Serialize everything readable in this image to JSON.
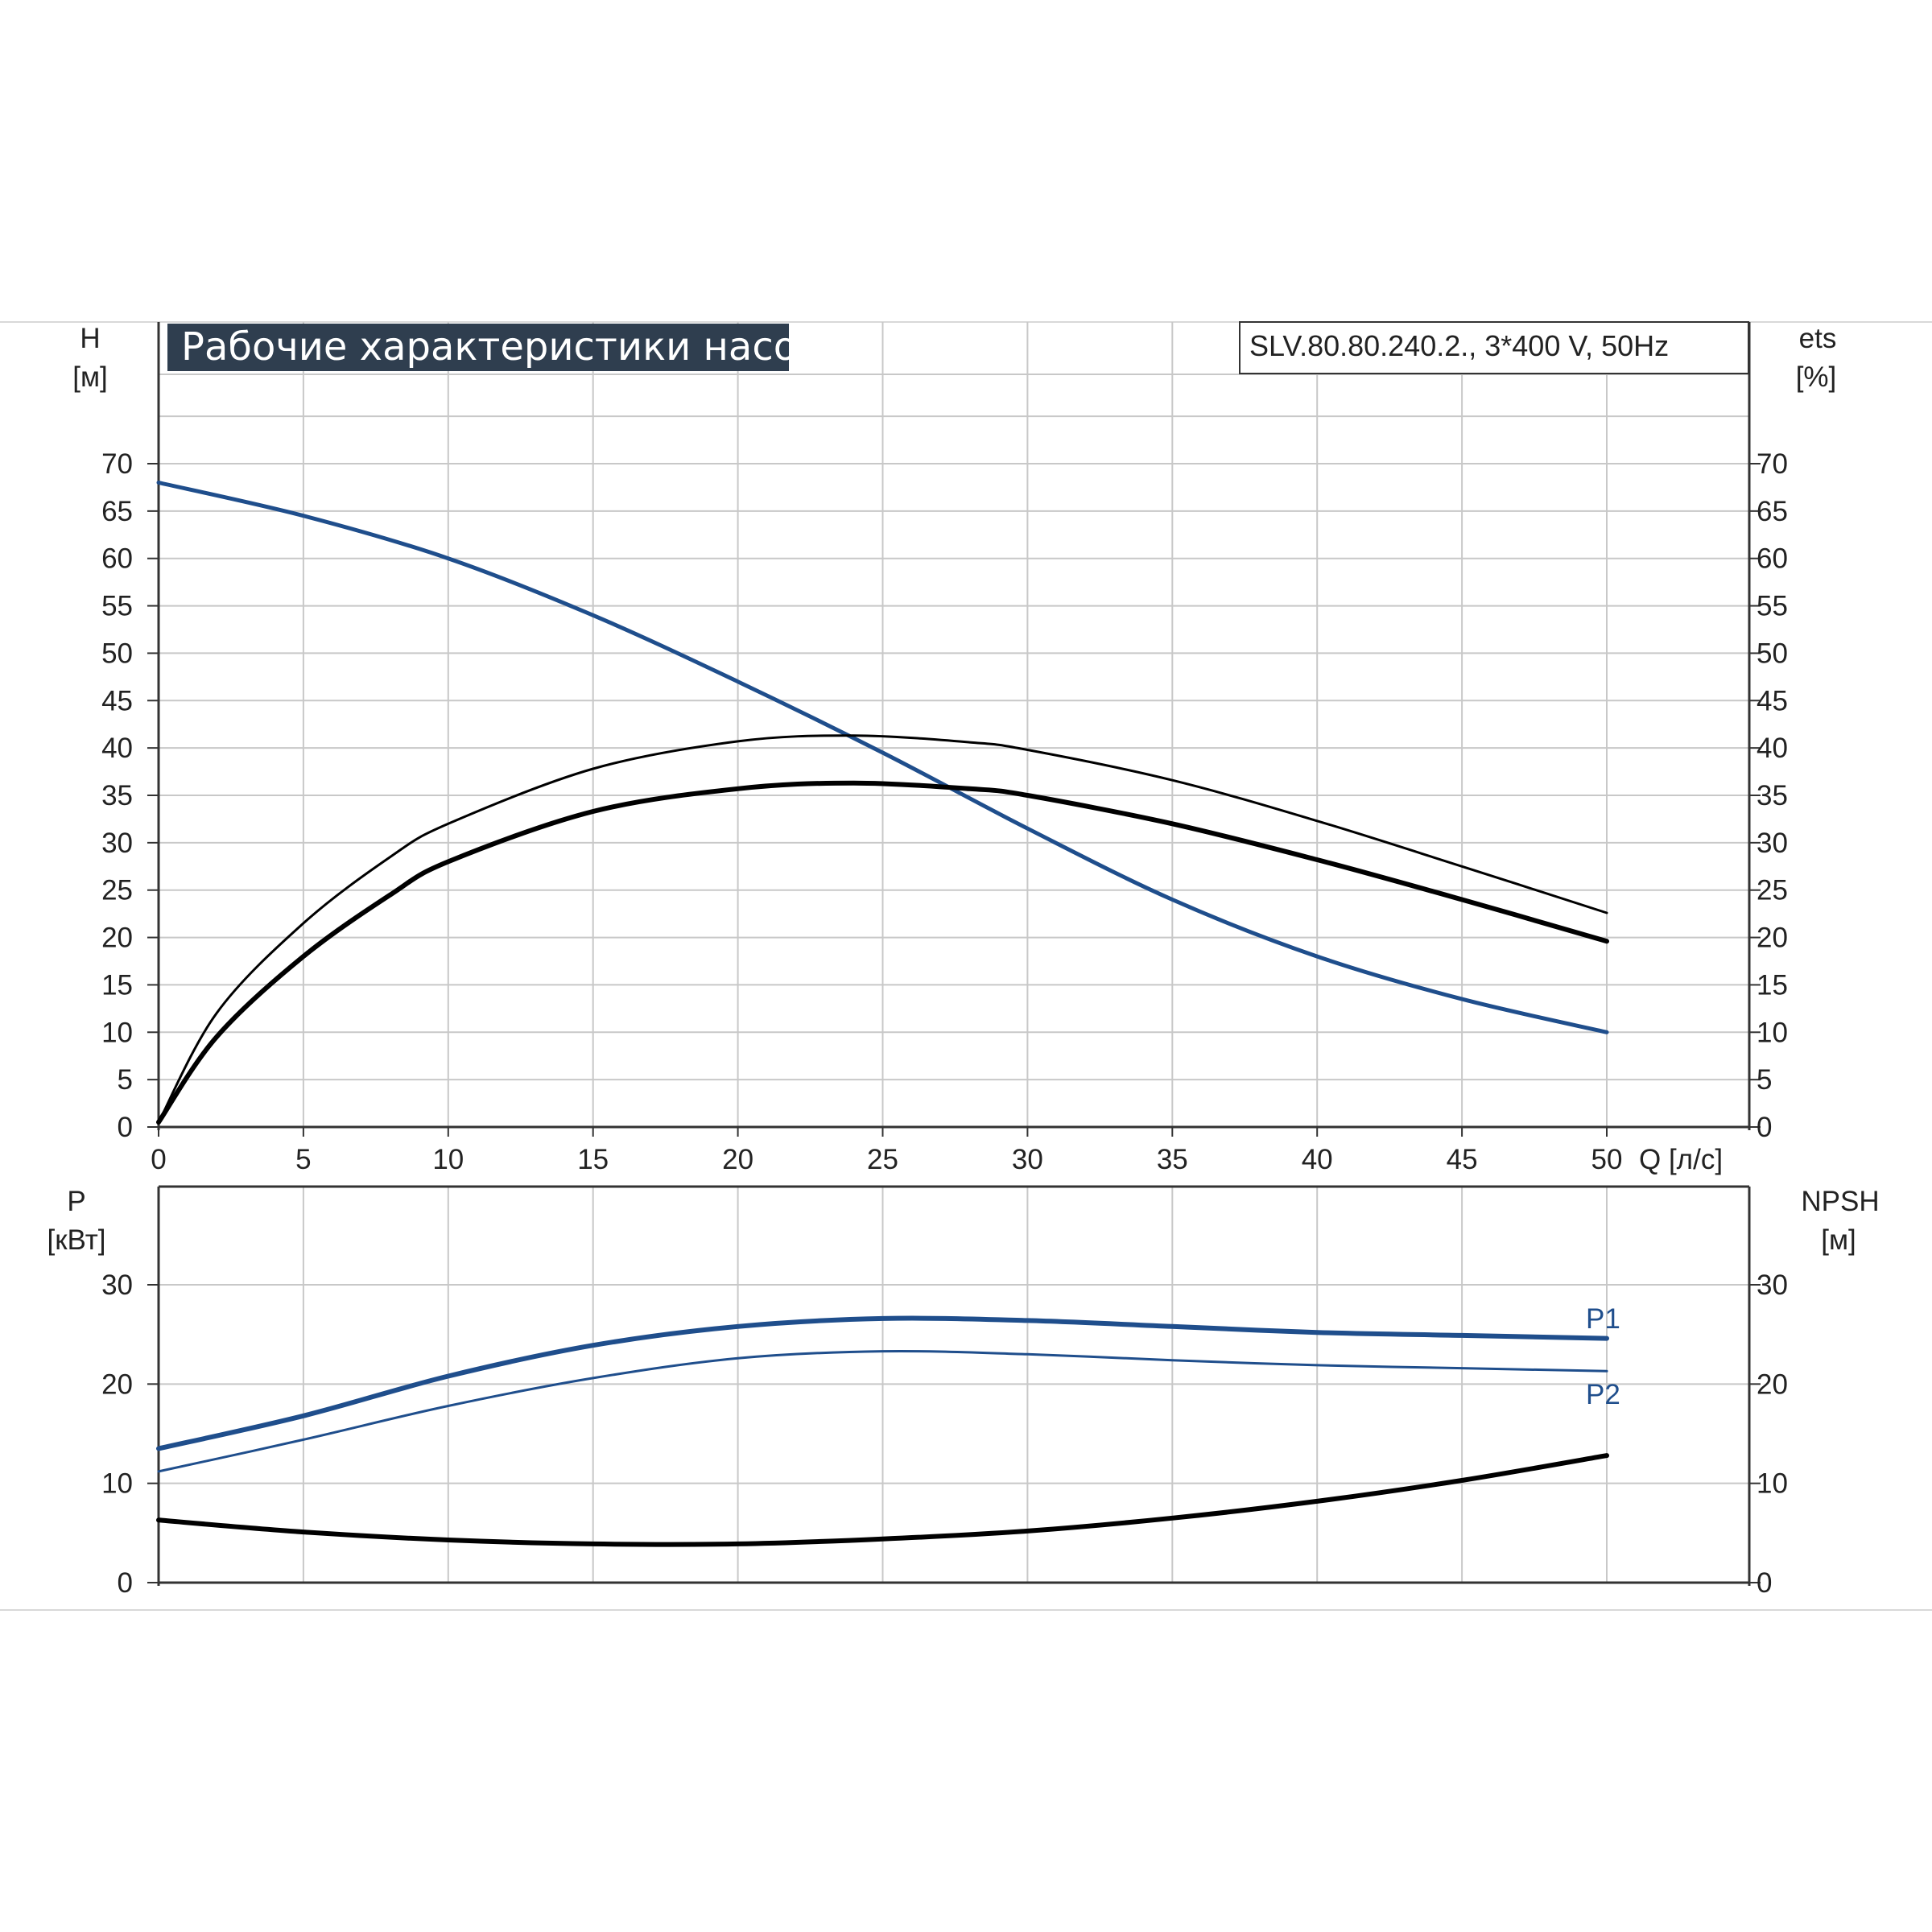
{
  "chart_data": [
    {
      "type": "line",
      "title": "Рабочие характеристики насоса",
      "model": "SLV.80.80.240.2., 3*400 V, 50Hz",
      "left_axis": {
        "label": "H",
        "unit": "[м]"
      },
      "right_axis": {
        "label": "ets",
        "unit": "[%]"
      },
      "xlabel": "Q [л/с]",
      "xlim": [
        0,
        50
      ],
      "ylim": [
        0,
        70
      ],
      "x_ticks": [
        0,
        5,
        10,
        15,
        20,
        25,
        30,
        35,
        40,
        45,
        50
      ],
      "y_ticks": [
        0,
        5,
        10,
        15,
        20,
        25,
        30,
        35,
        40,
        45,
        50,
        55,
        60,
        65,
        70
      ],
      "grid": true,
      "series": [
        {
          "color": "#1f4e8c",
          "points": [
            [
              0,
              68
            ],
            [
              5,
              64.5
            ],
            [
              10,
              60
            ],
            [
              15,
              54
            ],
            [
              20,
              47
            ],
            [
              25,
              39.5
            ],
            [
              30,
              31.5
            ],
            [
              35,
              24
            ],
            [
              40,
              18
            ],
            [
              45,
              13.5
            ],
            [
              50,
              10
            ]
          ]
        },
        {
          "color": "#000000",
          "points": [
            [
              0,
              0.5
            ],
            [
              2,
              12
            ],
            [
              5,
              21.5
            ],
            [
              8,
              28.5
            ],
            [
              10,
              32
            ],
            [
              15,
              37.8
            ],
            [
              20,
              40.7
            ],
            [
              24,
              41.3
            ],
            [
              28,
              40.6
            ],
            [
              30,
              39.8
            ],
            [
              35,
              36.6
            ],
            [
              40,
              32.3
            ],
            [
              45,
              27.5
            ],
            [
              50,
              22.6
            ]
          ]
        },
        {
          "color": "#000000",
          "points": [
            [
              0,
              0.5
            ],
            [
              2,
              9.5
            ],
            [
              5,
              18
            ],
            [
              8,
              24.5
            ],
            [
              10,
              28
            ],
            [
              15,
              33.3
            ],
            [
              20,
              35.7
            ],
            [
              24,
              36.3
            ],
            [
              28,
              35.7
            ],
            [
              30,
              35
            ],
            [
              35,
              32
            ],
            [
              40,
              28.2
            ],
            [
              45,
              24
            ],
            [
              50,
              19.6
            ]
          ]
        }
      ]
    },
    {
      "type": "line",
      "left_axis": {
        "label": "P",
        "unit": "[кВт]"
      },
      "right_axis": {
        "label": "NPSH",
        "unit": "[м]"
      },
      "xlim": [
        0,
        50
      ],
      "ylim": [
        0,
        40
      ],
      "y_ticks": [
        0,
        10,
        20,
        30
      ],
      "grid": true,
      "series": [
        {
          "name": "P1",
          "color": "#1f4e8c",
          "points": [
            [
              0,
              13.5
            ],
            [
              5,
              16.8
            ],
            [
              10,
              20.8
            ],
            [
              15,
              23.9
            ],
            [
              20,
              25.8
            ],
            [
              25,
              26.6
            ],
            [
              30,
              26.4
            ],
            [
              35,
              25.8
            ],
            [
              40,
              25.2
            ],
            [
              45,
              24.9
            ],
            [
              50,
              24.6
            ]
          ]
        },
        {
          "name": "P2",
          "color": "#1f4e8c",
          "points": [
            [
              0,
              11.2
            ],
            [
              5,
              14.4
            ],
            [
              10,
              17.8
            ],
            [
              15,
              20.6
            ],
            [
              20,
              22.6
            ],
            [
              25,
              23.3
            ],
            [
              30,
              23
            ],
            [
              35,
              22.4
            ],
            [
              40,
              21.9
            ],
            [
              45,
              21.6
            ],
            [
              50,
              21.3
            ]
          ]
        },
        {
          "color": "#000000",
          "points": [
            [
              0,
              6.3
            ],
            [
              5,
              5.1
            ],
            [
              10,
              4.3
            ],
            [
              15,
              3.9
            ],
            [
              20,
              3.9
            ],
            [
              25,
              4.4
            ],
            [
              30,
              5.2
            ],
            [
              35,
              6.5
            ],
            [
              40,
              8.2
            ],
            [
              45,
              10.3
            ],
            [
              50,
              12.8
            ]
          ]
        }
      ]
    }
  ]
}
